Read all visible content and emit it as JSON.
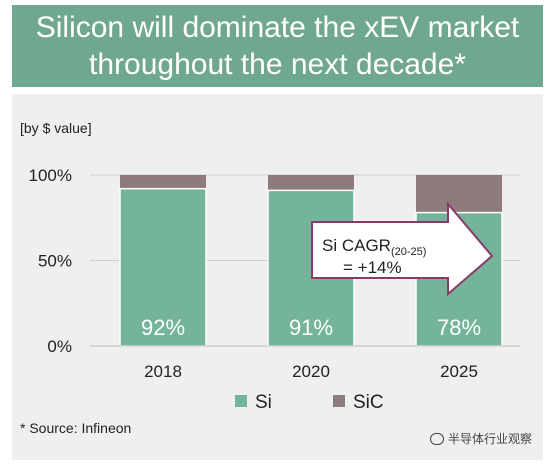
{
  "header": {
    "title_line1": "Silicon will dominate the xEV market",
    "title_line2": "throughout the next decade*"
  },
  "unit_label": "[by $ value]",
  "source_note": "* Source: Infineon",
  "watermark": "半导体行业观察",
  "colors": {
    "header_bg": "#6fa88e",
    "si": "#74b49b",
    "sic": "#8e7c7d",
    "panel_bg": "#efefef"
  },
  "chart_data": {
    "type": "bar",
    "stacked": true,
    "categories": [
      "2018",
      "2020",
      "2025"
    ],
    "series": [
      {
        "name": "Si",
        "values": [
          92,
          91,
          78
        ],
        "labels": [
          "92%",
          "91%",
          "78%"
        ]
      },
      {
        "name": "SiC",
        "values": [
          8,
          9,
          22
        ]
      }
    ],
    "ylim": [
      0,
      100
    ],
    "yticks": [
      "0%",
      "50%",
      "100%"
    ],
    "legend": "bottom",
    "annotation": {
      "line1": "Si CAGR",
      "subscript": "(20-25)",
      "line2": "= +14%",
      "shape": "arrow-right"
    }
  }
}
